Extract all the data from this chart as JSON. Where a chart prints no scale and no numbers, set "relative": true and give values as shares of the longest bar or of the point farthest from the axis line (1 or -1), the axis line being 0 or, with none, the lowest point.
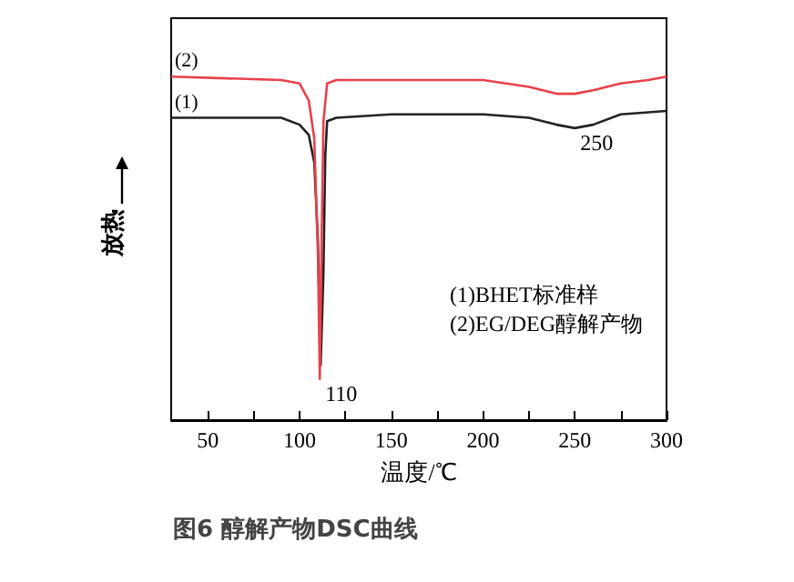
{
  "chart_data": {
    "type": "line",
    "relative": true,
    "title": "图6 醇解产物DSC曲线",
    "xlabel": "温度/℃",
    "ylabel": "放热",
    "xlim": [
      30,
      300
    ],
    "xticks": [
      50,
      {
        "value": 75,
        "label": null
      },
      100,
      {
        "value": 125,
        "label": null
      },
      150,
      {
        "value": 175,
        "label": null
      },
      200,
      {
        "value": 225,
        "label": null
      },
      250,
      {
        "value": 275,
        "label": null
      },
      300
    ],
    "grid": false,
    "marker": "none",
    "line_style": "solid",
    "series": [
      {
        "name": "(1)",
        "color": "#222222",
        "x": [
          30,
          50,
          90,
          100,
          105,
          108,
          110,
          111.5,
          113,
          114,
          115,
          120,
          150,
          200,
          225,
          240,
          250,
          260,
          275,
          300
        ],
        "values": [
          0.88,
          0.88,
          0.88,
          0.86,
          0.83,
          0.75,
          0.52,
          0.16,
          0.43,
          0.77,
          0.87,
          0.88,
          0.89,
          0.89,
          0.88,
          0.86,
          0.85,
          0.86,
          0.89,
          0.9
        ]
      },
      {
        "name": "(2)",
        "color": "#e8414b",
        "x": [
          30,
          90,
          100,
          105,
          108,
          110,
          111,
          112,
          113,
          115,
          120,
          150,
          200,
          225,
          240,
          250,
          260,
          275,
          290,
          300
        ],
        "values": [
          1,
          0.99,
          0.98,
          0.93,
          0.82,
          0.48,
          0.12,
          0.52,
          0.87,
          0.98,
          0.99,
          0.99,
          0.99,
          0.97,
          0.95,
          0.95,
          0.96,
          0.98,
          0.99,
          1
        ]
      }
    ],
    "annotations": [
      {
        "text": "110",
        "x": 111,
        "y": 0.12
      },
      {
        "text": "250",
        "x": 250,
        "y": 0.85
      },
      "(1)BHET标准样",
      "(2)EG/DEG醇解产物"
    ]
  }
}
